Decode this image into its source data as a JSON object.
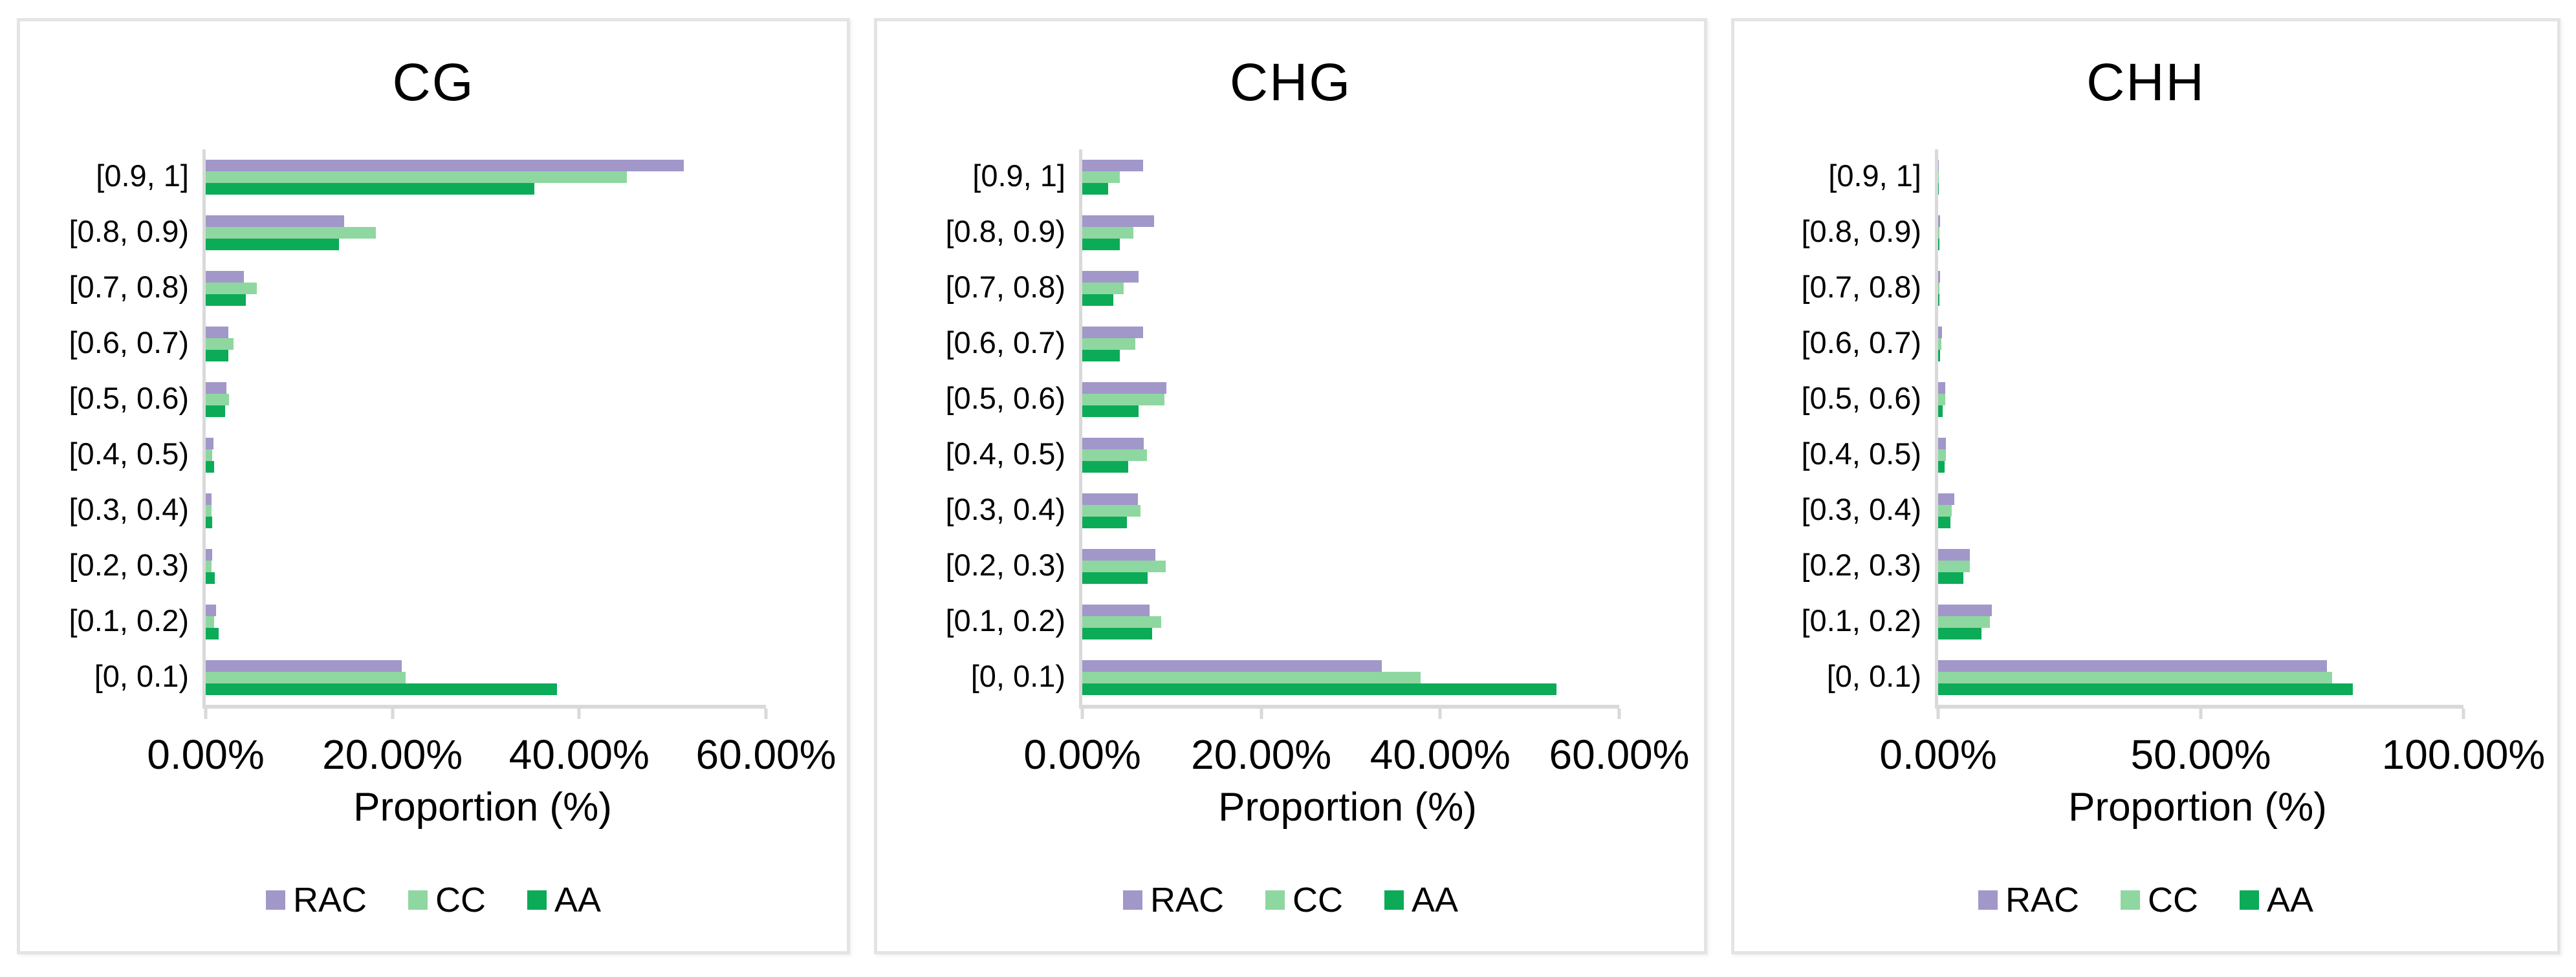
{
  "figure": {
    "background": "#ffffff",
    "x_axis_title": "Proportion (%)"
  },
  "colors": {
    "rac": "#a297c9",
    "cc": "#8fd7a0",
    "aa": "#0cab58",
    "axis": "#d9d9d9",
    "panel_border": "#e4e4e4",
    "text": "#000000"
  },
  "chart_data": [
    {
      "type": "bar",
      "orientation": "horizontal",
      "title": "CG",
      "xlabel": "Proportion (%)",
      "categories": [
        "[0.9, 1]",
        "[0.8, 0.9)",
        "[0.7, 0.8)",
        "[0.6, 0.7)",
        "[0.5, 0.6)",
        "[0.4, 0.5)",
        "[0.3, 0.4)",
        "[0.2, 0.3)",
        "[0.1, 0.2)",
        "[0, 0.1)"
      ],
      "xlim": [
        0,
        60
      ],
      "xticks": [
        "0.00%",
        "20.00%",
        "40.00%",
        "60.00%"
      ],
      "grid": false,
      "legend_position": "bottom",
      "series": [
        {
          "name": "RAC",
          "color_key": "rac",
          "values": [
            51.2,
            14.8,
            4.1,
            2.4,
            2.2,
            0.8,
            0.6,
            0.7,
            1.1,
            21.0
          ]
        },
        {
          "name": "CC",
          "color_key": "cc",
          "values": [
            45.1,
            18.2,
            5.5,
            3.0,
            2.5,
            0.7,
            0.6,
            0.6,
            0.9,
            21.4
          ]
        },
        {
          "name": "AA",
          "color_key": "aa",
          "values": [
            35.2,
            14.3,
            4.3,
            2.4,
            2.1,
            0.9,
            0.7,
            1.0,
            1.4,
            37.6
          ]
        }
      ]
    },
    {
      "type": "bar",
      "orientation": "horizontal",
      "title": "CHG",
      "xlabel": "Proportion (%)",
      "categories": [
        "[0.9, 1]",
        "[0.8, 0.9)",
        "[0.7, 0.8)",
        "[0.6, 0.7)",
        "[0.5, 0.6)",
        "[0.4, 0.5)",
        "[0.3, 0.4)",
        "[0.2, 0.3)",
        "[0.1, 0.2)",
        "[0, 0.1)"
      ],
      "xlim": [
        0,
        60
      ],
      "xticks": [
        "0.00%",
        "20.00%",
        "40.00%",
        "60.00%"
      ],
      "grid": false,
      "legend_position": "bottom",
      "series": [
        {
          "name": "RAC",
          "color_key": "rac",
          "values": [
            6.8,
            8.0,
            6.3,
            6.8,
            9.4,
            6.9,
            6.2,
            8.2,
            7.5,
            33.5
          ]
        },
        {
          "name": "CC",
          "color_key": "cc",
          "values": [
            4.2,
            5.7,
            4.6,
            5.9,
            9.2,
            7.2,
            6.5,
            9.3,
            8.8,
            37.8
          ]
        },
        {
          "name": "AA",
          "color_key": "aa",
          "values": [
            2.9,
            4.2,
            3.5,
            4.2,
            6.3,
            5.1,
            5.0,
            7.3,
            7.8,
            53.0
          ]
        }
      ]
    },
    {
      "type": "bar",
      "orientation": "horizontal",
      "title": "CHH",
      "xlabel": "Proportion (%)",
      "categories": [
        "[0.9, 1]",
        "[0.8, 0.9)",
        "[0.7, 0.8)",
        "[0.6, 0.7)",
        "[0.5, 0.6)",
        "[0.4, 0.5)",
        "[0.3, 0.4)",
        "[0.2, 0.3)",
        "[0.1, 0.2)",
        "[0, 0.1)"
      ],
      "xlim": [
        0,
        100
      ],
      "xticks": [
        "0.00%",
        "50.00%",
        "100.00%"
      ],
      "grid": false,
      "legend_position": "bottom",
      "series": [
        {
          "name": "RAC",
          "color_key": "rac",
          "values": [
            0.1,
            0.4,
            0.4,
            0.7,
            1.3,
            1.5,
            3.1,
            6.0,
            10.2,
            74.0
          ]
        },
        {
          "name": "CC",
          "color_key": "cc",
          "values": [
            0.1,
            0.3,
            0.3,
            0.6,
            1.3,
            1.5,
            2.6,
            6.0,
            9.9,
            75.0
          ]
        },
        {
          "name": "AA",
          "color_key": "aa",
          "values": [
            0.1,
            0.2,
            0.3,
            0.4,
            0.9,
            1.2,
            2.3,
            4.8,
            8.3,
            79.0
          ]
        }
      ]
    }
  ]
}
